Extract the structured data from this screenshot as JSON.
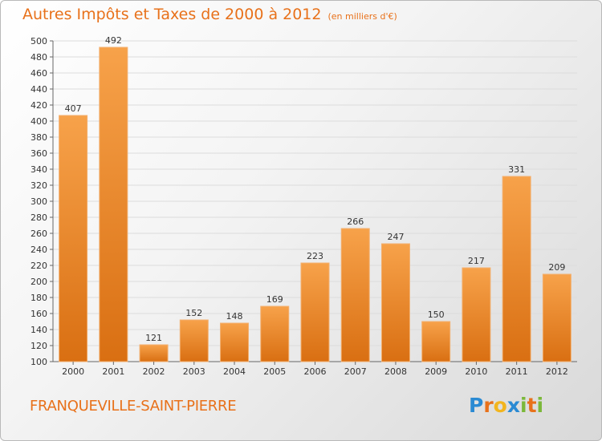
{
  "chart_data": {
    "type": "bar",
    "title": "Autres Impôts et Taxes de 2000 à 2012",
    "subtitle": "(en milliers d'€)",
    "xlabel": "",
    "ylabel": "",
    "categories": [
      "2000",
      "2001",
      "2002",
      "2003",
      "2004",
      "2005",
      "2006",
      "2007",
      "2008",
      "2009",
      "2010",
      "2011",
      "2012"
    ],
    "values": [
      407,
      492,
      121,
      152,
      148,
      169,
      223,
      266,
      247,
      150,
      217,
      331,
      209
    ],
    "ylim": [
      100,
      500
    ],
    "yticks": [
      100,
      120,
      140,
      160,
      180,
      200,
      220,
      240,
      260,
      280,
      300,
      320,
      340,
      360,
      380,
      400,
      420,
      440,
      460,
      480,
      500
    ],
    "grid": true,
    "legend": "none",
    "bar_color_top": "#f7a24a",
    "bar_color_bottom": "#d96f12",
    "accent_color": "#e8711a"
  },
  "place_name": "FRANQUEVILLE-SAINT-PIERRE",
  "logo": {
    "letters": [
      "P",
      "r",
      "o",
      "x",
      "i",
      "t",
      "i"
    ],
    "colors": [
      "#2a8ad3",
      "#e8711a",
      "#f2b51e",
      "#2a8ad3",
      "#7bb83a",
      "#e8711a",
      "#7bb83a"
    ]
  }
}
